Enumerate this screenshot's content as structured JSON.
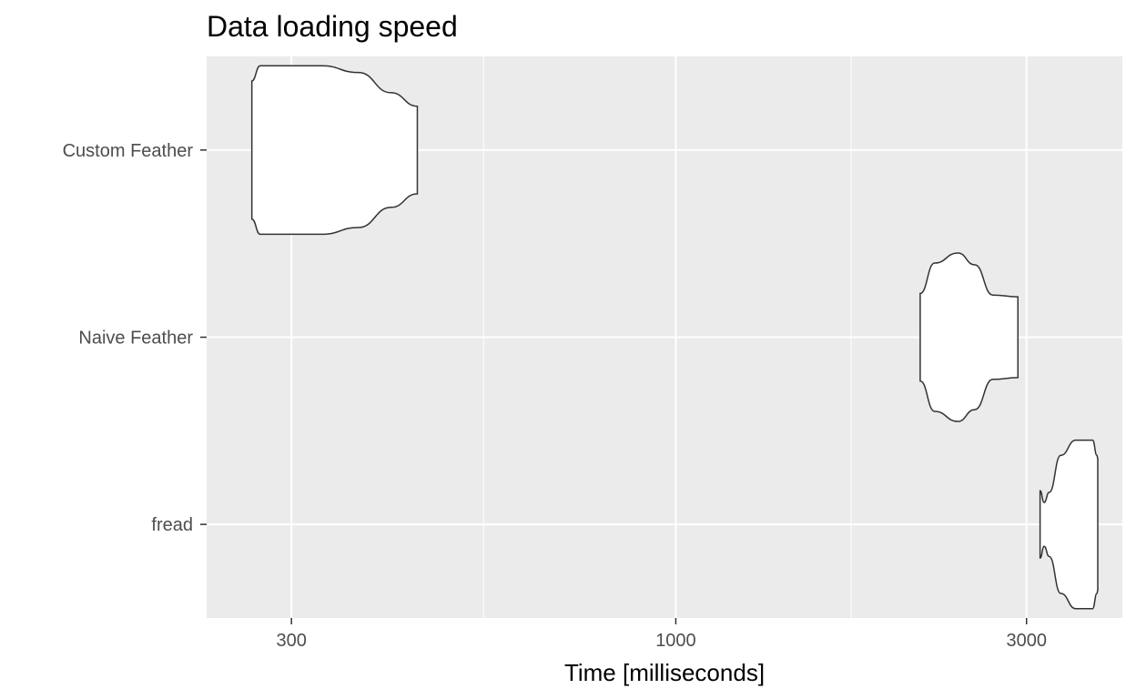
{
  "chart_data": {
    "type": "violin",
    "title": "Data loading speed",
    "xlabel": "Time [milliseconds]",
    "ylabel": "",
    "x_scale": "log10",
    "xlim": [
      230,
      4050
    ],
    "x_ticks": [
      300,
      1000,
      3000
    ],
    "x_tick_labels": [
      "300",
      "1000",
      "3000"
    ],
    "categories": [
      "Custom Feather",
      "Naive Feather",
      "fread"
    ],
    "series": [
      {
        "category": "Custom Feather",
        "min": 265,
        "max": 445,
        "profile": [
          [
            265,
            0.82
          ],
          [
            272,
            1.0
          ],
          [
            330,
            1.0
          ],
          [
            370,
            0.92
          ],
          [
            410,
            0.68
          ],
          [
            445,
            0.52
          ]
        ]
      },
      {
        "category": "Naive Feather",
        "min": 2150,
        "max": 2920,
        "profile": [
          [
            2150,
            0.52
          ],
          [
            2250,
            0.88
          ],
          [
            2420,
            1.0
          ],
          [
            2550,
            0.86
          ],
          [
            2700,
            0.5
          ],
          [
            2920,
            0.48
          ]
        ]
      },
      {
        "category": "fread",
        "min": 3130,
        "max": 3750,
        "profile": [
          [
            3130,
            0.4
          ],
          [
            3170,
            0.26
          ],
          [
            3220,
            0.38
          ],
          [
            3340,
            0.82
          ],
          [
            3500,
            1.0
          ],
          [
            3690,
            1.0
          ],
          [
            3740,
            0.82
          ],
          [
            3750,
            0.78
          ]
        ]
      }
    ],
    "panel_background": "#ebebeb",
    "grid_color": "#ffffff",
    "violin_fill": "#ffffff",
    "violin_stroke": "#333333",
    "grid": true,
    "legend": "none"
  }
}
